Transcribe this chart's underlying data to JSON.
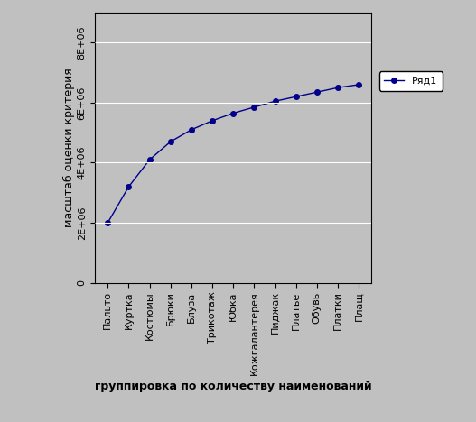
{
  "categories": [
    "Пальто",
    "Куртка",
    "Костюмы",
    "Брюки",
    "Блуза",
    "Трикотаж",
    "Юбка",
    "Кожгалантерея",
    "Пиджак",
    "Платье",
    "Обувь",
    "Платки",
    "Плащ"
  ],
  "values": [
    2000000,
    3200000,
    4100000,
    4700000,
    5100000,
    5400000,
    5650000,
    5850000,
    6050000,
    6200000,
    6350000,
    6500000,
    6600000
  ],
  "line_color": "#00008B",
  "marker_style": "o",
  "marker_size": 4,
  "marker_face_color": "#00008B",
  "ylabel": "масштаб оценки критерия",
  "xlabel": "группировка по количеству наименований",
  "legend_label": "Ряд1",
  "ylim": [
    0,
    9000000
  ],
  "yticks": [
    0,
    2000000,
    4000000,
    6000000,
    8000000
  ],
  "ytick_labels": [
    "0",
    "2E+06",
    "4E+06",
    "6E+06",
    "8E+06"
  ],
  "plot_bg_color": "#C0C0C0",
  "fig_bg_color": "#C0C0C0",
  "border_color": "#000000",
  "grid_color": "#FFFFFF",
  "font_size_ticks": 8,
  "font_size_labels": 9,
  "font_size_ylabel": 9
}
